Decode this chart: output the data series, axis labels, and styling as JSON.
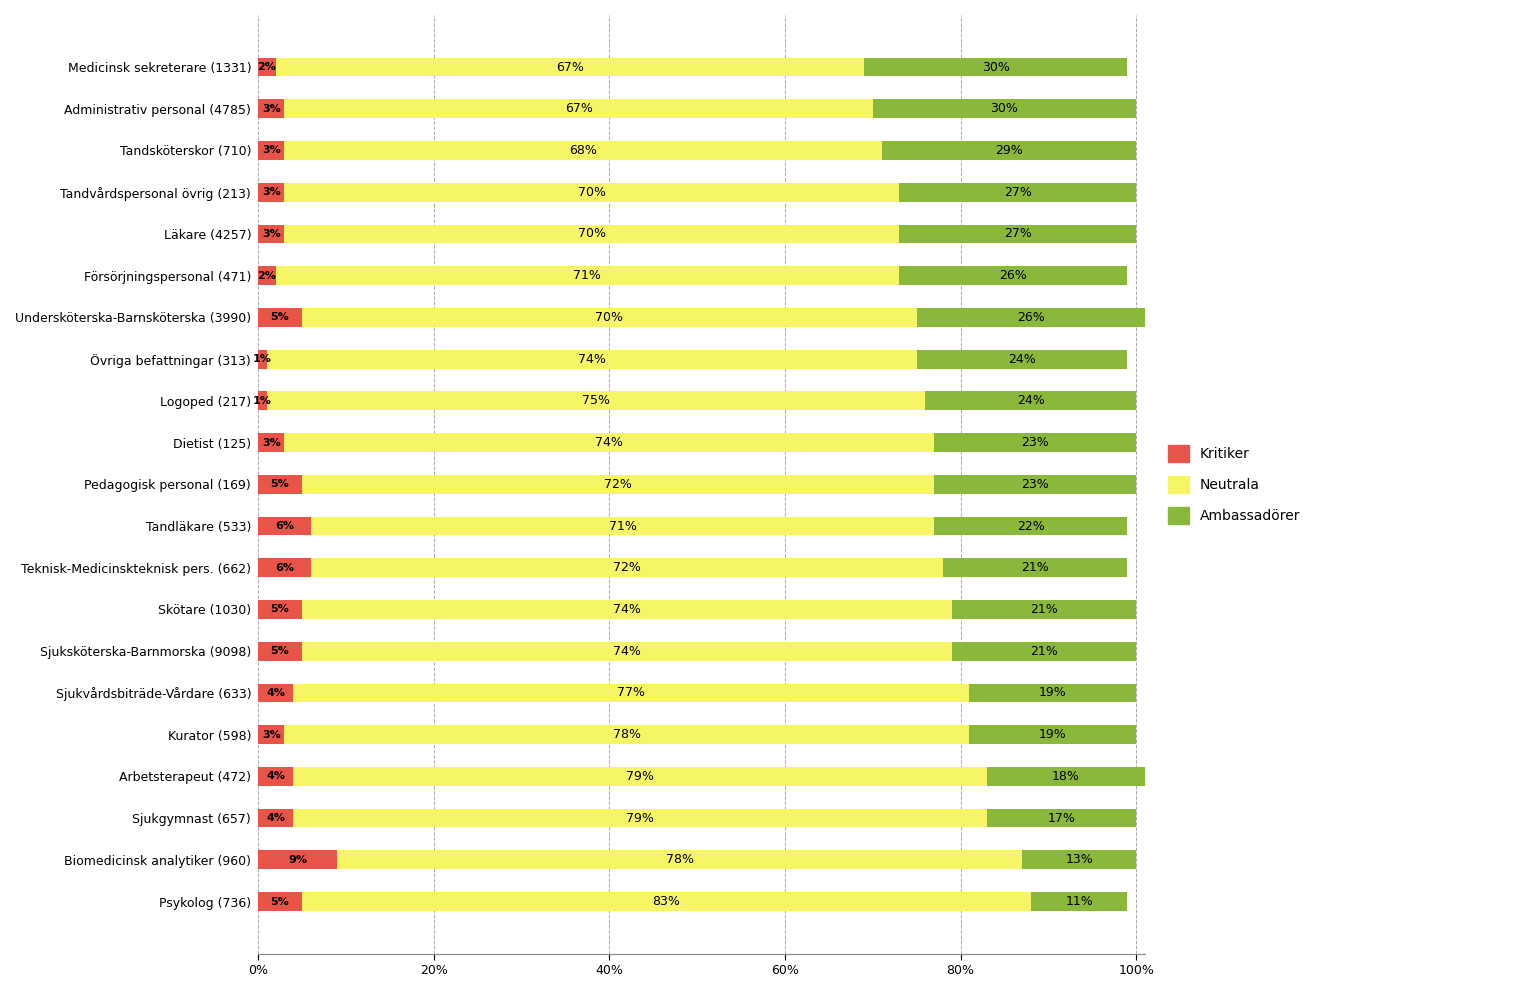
{
  "categories": [
    "Medicinsk sekreterare (1331)",
    "Administrativ personal (4785)",
    "Tandsköterskor (710)",
    "Tandvårdspersonal övrig (213)",
    "Läkare (4257)",
    "Försörjningspersonal (471)",
    "Undersköterska-Barnsköterska (3990)",
    "Övriga befattningar (313)",
    "Logoped (217)",
    "Dietist (125)",
    "Pedagogisk personal (169)",
    "Tandläkare (533)",
    "Teknisk-Medicinskteknisk pers. (662)",
    "Skötare (1030)",
    "Sjuksköterska-Barnmorska (9098)",
    "Sjukvårdsbiträde-Vårdare (633)",
    "Kurator (598)",
    "Arbetsterapeut (472)",
    "Sjukgymnast (657)",
    "Biomedicinsk analytiker (960)",
    "Psykolog (736)"
  ],
  "kritiker": [
    2,
    3,
    3,
    3,
    3,
    2,
    5,
    1,
    1,
    3,
    5,
    6,
    6,
    5,
    5,
    4,
    3,
    4,
    4,
    9,
    5
  ],
  "neutrala": [
    67,
    67,
    68,
    70,
    70,
    71,
    70,
    74,
    75,
    74,
    72,
    71,
    72,
    74,
    74,
    77,
    78,
    79,
    79,
    78,
    83
  ],
  "ambassadorer": [
    30,
    30,
    29,
    27,
    27,
    26,
    26,
    24,
    24,
    23,
    23,
    22,
    21,
    21,
    21,
    19,
    19,
    18,
    17,
    13,
    11
  ],
  "kritiker_color": "#e8534a",
  "neutrala_color": "#f5f566",
  "ambassadorer_color": "#8ab83a",
  "background_color": "#ffffff",
  "figsize": [
    15.23,
    9.92
  ],
  "dpi": 100,
  "bar_height": 0.45,
  "legend_labels": [
    "Kritiker",
    "Neutrala",
    "Ambassadörer"
  ]
}
